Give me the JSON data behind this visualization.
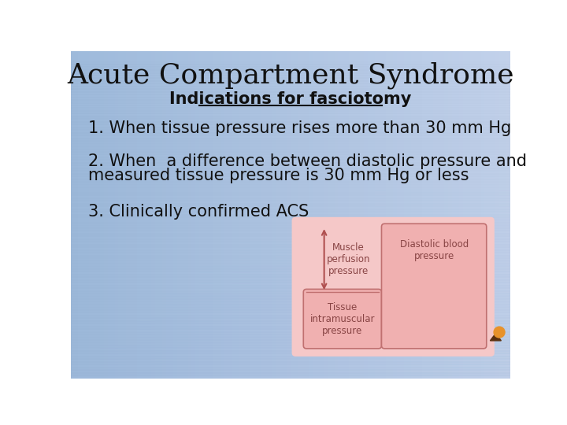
{
  "title": "Acute Compartment Syndrome",
  "subtitle": "Indications for fasciotomy",
  "point1": "1. When tissue pressure rises more than 30 mm Hg",
  "point2_line1": "2. When  a difference between diastolic pressure and",
  "point2_line2": "measured tissue pressure is 30 mm Hg or less",
  "point3": "3. Clinically confirmed ACS",
  "title_fontsize": 26,
  "subtitle_fontsize": 15,
  "body_fontsize": 15,
  "text_color": "#111111",
  "arrow_color": "#b05050",
  "diagram_bg": "#f5c8c8",
  "bar_face": "#f0b0b0",
  "bar_edge": "#c07070",
  "diag_label_color": "#884444"
}
